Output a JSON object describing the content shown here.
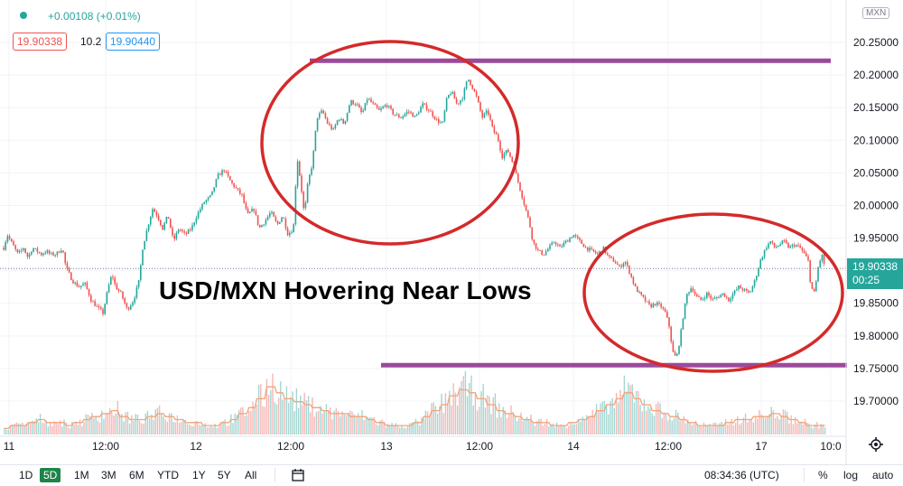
{
  "header": {
    "change_text": "+0.00108 (+0.01%)",
    "bid": "19.90338",
    "spread": "10.2",
    "ask": "19.90440"
  },
  "symbol_tag": "MXN",
  "annotation_text": "USD/MXN Hovering Near Lows",
  "last_price": {
    "value": "19.90338",
    "countdown": "00:25"
  },
  "bottom_bar": {
    "timeframes": [
      "1D",
      "5D",
      "1M",
      "3M",
      "6M",
      "YTD",
      "1Y",
      "5Y",
      "All"
    ],
    "active_timeframe": "5D",
    "clock": "08:34:36 (UTC)",
    "percent_label": "%",
    "log_label": "log",
    "auto_label": "auto"
  },
  "colors": {
    "up": "#26a69a",
    "down": "#ef5350",
    "support_resistance": "#9c4a9c",
    "circle": "#d42a2a",
    "volume_ma": "#f2a37a"
  },
  "chart_data": {
    "type": "candlestick",
    "pair": "USD/MXN",
    "x_tick_labels": [
      "11",
      "12:00",
      "12",
      "12:00",
      "13",
      "12:00",
      "14",
      "12:00",
      "17",
      "10:0"
    ],
    "y_tick_labels": [
      "19.70000",
      "19.75000",
      "19.80000",
      "19.85000",
      "19.90000",
      "19.95000",
      "20.00000",
      "20.05000",
      "20.10000",
      "20.15000",
      "20.20000",
      "20.25000"
    ],
    "ylim": [
      19.66,
      20.3
    ],
    "close_path": [
      [
        0,
        19.915
      ],
      [
        3,
        19.93
      ],
      [
        8,
        19.955
      ],
      [
        14,
        19.94
      ],
      [
        20,
        19.925
      ],
      [
        26,
        19.935
      ],
      [
        31,
        19.92
      ],
      [
        36,
        19.935
      ],
      [
        41,
        19.93
      ],
      [
        46,
        19.925
      ],
      [
        51,
        19.93
      ],
      [
        56,
        19.925
      ],
      [
        62,
        19.925
      ],
      [
        69,
        19.935
      ],
      [
        73,
        19.905
      ],
      [
        80,
        19.885
      ],
      [
        87,
        19.875
      ],
      [
        94,
        19.88
      ],
      [
        101,
        19.855
      ],
      [
        107,
        19.845
      ],
      [
        114,
        19.835
      ],
      [
        120,
        19.875
      ],
      [
        124,
        19.895
      ],
      [
        128,
        19.875
      ],
      [
        134,
        19.865
      ],
      [
        141,
        19.84
      ],
      [
        148,
        19.855
      ],
      [
        154,
        19.885
      ],
      [
        158,
        19.935
      ],
      [
        164,
        19.97
      ],
      [
        169,
        19.995
      ],
      [
        174,
        19.985
      ],
      [
        180,
        19.965
      ],
      [
        186,
        19.985
      ],
      [
        192,
        19.945
      ],
      [
        198,
        19.965
      ],
      [
        205,
        19.955
      ],
      [
        212,
        19.965
      ],
      [
        218,
        19.985
      ],
      [
        226,
        20.005
      ],
      [
        234,
        20.015
      ],
      [
        241,
        20.045
      ],
      [
        248,
        20.055
      ],
      [
        256,
        20.035
      ],
      [
        262,
        20.025
      ],
      [
        268,
        20.015
      ],
      [
        274,
        19.985
      ],
      [
        281,
        19.995
      ],
      [
        287,
        19.965
      ],
      [
        293,
        19.975
      ],
      [
        300,
        19.99
      ],
      [
        307,
        19.97
      ],
      [
        313,
        19.985
      ],
      [
        319,
        19.955
      ],
      [
        325,
        19.965
      ],
      [
        329,
        20.075
      ],
      [
        333,
        20.035
      ],
      [
        337,
        19.985
      ],
      [
        341,
        20.035
      ],
      [
        346,
        20.065
      ],
      [
        351,
        20.135
      ],
      [
        357,
        20.145
      ],
      [
        363,
        20.125
      ],
      [
        369,
        20.115
      ],
      [
        375,
        20.135
      ],
      [
        381,
        20.125
      ],
      [
        388,
        20.16
      ],
      [
        395,
        20.155
      ],
      [
        401,
        20.14
      ],
      [
        407,
        20.165
      ],
      [
        413,
        20.155
      ],
      [
        420,
        20.145
      ],
      [
        428,
        20.155
      ],
      [
        436,
        20.14
      ],
      [
        444,
        20.135
      ],
      [
        452,
        20.145
      ],
      [
        460,
        20.135
      ],
      [
        468,
        20.155
      ],
      [
        476,
        20.145
      ],
      [
        484,
        20.13
      ],
      [
        490,
        20.125
      ],
      [
        495,
        20.165
      ],
      [
        500,
        20.175
      ],
      [
        506,
        20.155
      ],
      [
        512,
        20.165
      ],
      [
        518,
        20.195
      ],
      [
        522,
        20.185
      ],
      [
        528,
        20.165
      ],
      [
        534,
        20.135
      ],
      [
        540,
        20.145
      ],
      [
        546,
        20.115
      ],
      [
        551,
        20.105
      ],
      [
        556,
        20.075
      ],
      [
        562,
        20.085
      ],
      [
        568,
        20.065
      ],
      [
        574,
        20.035
      ],
      [
        578,
        20.015
      ],
      [
        582,
        19.995
      ],
      [
        586,
        19.975
      ],
      [
        590,
        19.945
      ],
      [
        596,
        19.93
      ],
      [
        602,
        19.925
      ],
      [
        608,
        19.935
      ],
      [
        614,
        19.945
      ],
      [
        620,
        19.935
      ],
      [
        627,
        19.945
      ],
      [
        635,
        19.955
      ],
      [
        642,
        19.945
      ],
      [
        649,
        19.935
      ],
      [
        656,
        19.93
      ],
      [
        662,
        19.925
      ],
      [
        668,
        19.935
      ],
      [
        674,
        19.92
      ],
      [
        680,
        19.915
      ],
      [
        686,
        19.905
      ],
      [
        692,
        19.915
      ],
      [
        698,
        19.895
      ],
      [
        703,
        19.875
      ],
      [
        708,
        19.865
      ],
      [
        714,
        19.855
      ],
      [
        720,
        19.845
      ],
      [
        726,
        19.85
      ],
      [
        732,
        19.845
      ],
      [
        737,
        19.835
      ],
      [
        741,
        19.815
      ],
      [
        745,
        19.775
      ],
      [
        749,
        19.765
      ],
      [
        753,
        19.795
      ],
      [
        757,
        19.835
      ],
      [
        761,
        19.865
      ],
      [
        766,
        19.875
      ],
      [
        771,
        19.86
      ],
      [
        777,
        19.855
      ],
      [
        783,
        19.865
      ],
      [
        789,
        19.855
      ],
      [
        795,
        19.86
      ],
      [
        801,
        19.865
      ],
      [
        807,
        19.855
      ],
      [
        812,
        19.865
      ],
      [
        818,
        19.875
      ],
      [
        824,
        19.87
      ],
      [
        830,
        19.865
      ],
      [
        836,
        19.885
      ],
      [
        842,
        19.915
      ],
      [
        848,
        19.935
      ],
      [
        853,
        19.945
      ],
      [
        858,
        19.935
      ],
      [
        863,
        19.94
      ],
      [
        868,
        19.945
      ],
      [
        874,
        19.935
      ],
      [
        880,
        19.94
      ],
      [
        886,
        19.935
      ],
      [
        891,
        19.925
      ],
      [
        895,
        19.915
      ],
      [
        898,
        19.875
      ],
      [
        902,
        19.865
      ],
      [
        906,
        19.905
      ],
      [
        910,
        19.925
      ],
      [
        914,
        19.90338
      ]
    ],
    "horizontal_lines": [
      {
        "value": 20.222,
        "x_start": 343,
        "x_end": 920
      },
      {
        "value": 19.755,
        "x_start": 422,
        "x_end": 938
      }
    ],
    "ellipses": [
      {
        "cx": 432,
        "cy": 158,
        "rx": 142,
        "ry": 112
      },
      {
        "cx": 790,
        "cy": 324,
        "rx": 143,
        "ry": 87
      }
    ],
    "volume_profile": [
      2,
      3,
      3,
      4,
      5,
      4,
      4,
      3,
      4,
      5,
      6,
      7,
      8,
      6,
      5,
      5,
      6,
      7,
      6,
      5,
      4,
      4,
      3,
      3,
      4,
      5,
      7,
      9,
      12,
      16,
      14,
      12,
      11,
      10,
      9,
      8,
      7,
      7,
      6,
      6,
      5,
      4,
      3,
      3,
      3,
      4,
      6,
      8,
      10,
      13,
      15,
      14,
      12,
      10,
      8,
      7,
      6,
      5,
      4,
      4,
      3,
      3,
      4,
      5,
      6,
      8,
      10,
      12,
      14,
      12,
      10,
      8,
      7,
      6,
      5,
      4,
      3,
      3,
      3,
      4,
      5,
      5,
      6,
      6,
      7,
      6,
      5,
      4,
      3,
      3
    ]
  }
}
